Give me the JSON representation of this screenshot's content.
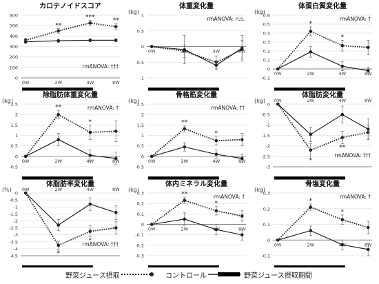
{
  "colors": {
    "line": "#222222",
    "grid": "#e3e3e3",
    "axis": "#888888",
    "text": "#333333",
    "bar": "#000000"
  },
  "legend": {
    "treated_label": "野菜ジュース摂取",
    "control_label": "コントロール",
    "period_label": "野菜ジュース摂取期間"
  },
  "chart_data": [
    {
      "type": "line",
      "title": "カロテノイドスコア",
      "unit": "",
      "x": [
        "0W",
        "2W",
        "4W",
        "8W"
      ],
      "ylim": [
        0,
        600
      ],
      "yticks": [
        0,
        100,
        200,
        300,
        400,
        500,
        600
      ],
      "xlabel_mode": "bottom",
      "series": [
        {
          "name": "野菜ジュース摂取",
          "style": "dotted",
          "values": [
            360,
            450,
            525,
            490
          ],
          "err": [
            20,
            22,
            25,
            30
          ]
        },
        {
          "name": "コントロール",
          "style": "solid",
          "values": [
            345,
            355,
            360,
            360
          ],
          "err": [
            15,
            15,
            15,
            15
          ]
        }
      ],
      "stars": [
        {
          "i": 1,
          "text": "**"
        },
        {
          "i": 2,
          "text": "***"
        },
        {
          "i": 3,
          "text": "**"
        }
      ],
      "stats_text": "rmANOVA: †††",
      "stats_pos": "lower-right",
      "period": [
        0,
        2
      ]
    },
    {
      "type": "line",
      "title": "体重変化量",
      "unit": "(kg)",
      "x": [
        "0W",
        "2W",
        "4W",
        "8W"
      ],
      "ylim": [
        -1,
        1
      ],
      "yticks": [
        -1,
        -0.5,
        0,
        0.5,
        1
      ],
      "xlabel_mode": "zero",
      "series": [
        {
          "name": "野菜ジュース摂取",
          "style": "dotted",
          "values": [
            0,
            -0.15,
            -0.5,
            -0.1
          ],
          "err": [
            0,
            0.2,
            0.2,
            0.3
          ]
        },
        {
          "name": "コントロール",
          "style": "solid",
          "values": [
            0,
            -0.1,
            -0.6,
            -0.05
          ],
          "err": [
            0,
            0.45,
            0.15,
            0.4
          ]
        }
      ],
      "stars": [],
      "stats_text": "rmANOVA: n.s.",
      "stats_pos": "upper-right",
      "period": [
        0,
        2
      ]
    },
    {
      "type": "line",
      "title": "体蛋白質変化量",
      "unit": "(kg)",
      "x": [
        "0W",
        "2W",
        "4W",
        "8W"
      ],
      "ylim": [
        -0.1,
        0.6
      ],
      "yticks": [
        -0.1,
        0,
        0.1,
        0.2,
        0.3,
        0.4,
        0.5,
        0.6
      ],
      "xlabel_mode": "zero",
      "series": [
        {
          "name": "野菜ジュース摂取",
          "style": "dotted",
          "values": [
            0,
            0.42,
            0.26,
            0.24
          ],
          "err": [
            0,
            0.05,
            0.06,
            0.08
          ]
        },
        {
          "name": "コントロール",
          "style": "solid",
          "values": [
            0,
            0.19,
            0.03,
            -0.02
          ],
          "err": [
            0,
            0.06,
            0.05,
            0.04
          ]
        }
      ],
      "stars": [
        {
          "i": 1,
          "text": "*"
        },
        {
          "i": 2,
          "text": "*"
        }
      ],
      "stats_text": "rmANOVA: †",
      "stats_pos": "upper-right",
      "period": [
        0,
        2
      ]
    },
    {
      "type": "line",
      "title": "除脂肪体重変化量",
      "unit": "(kg)",
      "x": [
        "0W",
        "2W",
        "4W",
        "8W"
      ],
      "ylim": [
        -0.5,
        2.5
      ],
      "yticks": [
        -0.5,
        0,
        0.5,
        1,
        1.5,
        2,
        2.5
      ],
      "xlabel_mode": "zero",
      "series": [
        {
          "name": "野菜ジュース摂取",
          "style": "dotted",
          "values": [
            0,
            2.0,
            1.15,
            1.2
          ],
          "err": [
            0,
            0.2,
            0.35,
            0.5
          ]
        },
        {
          "name": "コントロール",
          "style": "solid",
          "values": [
            0,
            0.8,
            0.05,
            -0.1
          ],
          "err": [
            0,
            0.3,
            0.25,
            0.3
          ]
        }
      ],
      "stars": [
        {
          "i": 1,
          "text": "**"
        },
        {
          "i": 2,
          "text": "*"
        }
      ],
      "stats_text": "rmANOVA: †",
      "stats_pos": "upper-right",
      "period": [
        0,
        2
      ]
    },
    {
      "type": "line",
      "title": "骨格筋変化量",
      "unit": "(kg)",
      "x": [
        "0W",
        "2W",
        "4W",
        "8W"
      ],
      "ylim": [
        -0.5,
        2.5
      ],
      "yticks": [
        -0.5,
        0,
        0.5,
        1,
        1.5,
        2,
        2.5
      ],
      "xlabel_mode": "zero",
      "series": [
        {
          "name": "野菜ジュース摂取",
          "style": "dotted",
          "values": [
            0,
            1.32,
            0.75,
            0.8
          ],
          "err": [
            0,
            0.15,
            0.2,
            0.3
          ]
        },
        {
          "name": "コントロール",
          "style": "solid",
          "values": [
            0,
            0.45,
            0.1,
            -0.1
          ],
          "err": [
            0,
            0.2,
            0.2,
            0.2
          ]
        }
      ],
      "stars": [
        {
          "i": 1,
          "text": "**"
        },
        {
          "i": 2,
          "text": "*"
        }
      ],
      "stats_text": "rmANOVA: ††",
      "stats_pos": "upper-right",
      "period": [
        0,
        2
      ]
    },
    {
      "type": "line",
      "title": "体脂肪変化量",
      "unit": "(kg)",
      "x": [
        "0W",
        "2W",
        "4W",
        "8W"
      ],
      "ylim": [
        -3,
        0
      ],
      "yticks": [
        -3,
        -2.5,
        -2,
        -1.5,
        -1,
        -0.5,
        0
      ],
      "xlabel_mode": "zero",
      "series": [
        {
          "name": "野菜ジュース摂取",
          "style": "dotted",
          "values": [
            0,
            -2.2,
            -1.6,
            -1.35
          ],
          "err": [
            0,
            0.3,
            0.3,
            0.35
          ]
        },
        {
          "name": "コントロール",
          "style": "solid",
          "values": [
            0,
            -1.45,
            -0.5,
            -1.2
          ],
          "err": [
            0,
            0.35,
            0.4,
            0.5
          ]
        }
      ],
      "stars": [
        {
          "i": 1,
          "text": "*"
        },
        {
          "i": 2,
          "text": "**"
        }
      ],
      "stats_text": "rmANOVA: †††",
      "stats_pos": "lower-right",
      "period": [
        0,
        2
      ]
    },
    {
      "type": "line",
      "title": "体脂肪率変化量",
      "unit": "(%)",
      "x": [
        "0W",
        "2W",
        "4W",
        "8W"
      ],
      "ylim": [
        -4.5,
        0
      ],
      "yticks": [
        -4.5,
        -4,
        -3.5,
        -3,
        -2.5,
        -2,
        -1.5,
        -1,
        -0.5,
        0
      ],
      "xlabel_mode": "zero",
      "series": [
        {
          "name": "野菜ジュース摂取",
          "style": "dotted",
          "values": [
            0,
            -3.75,
            -2.75,
            -2.5
          ],
          "err": [
            0,
            0.3,
            0.4,
            0.45
          ]
        },
        {
          "name": "コントロール",
          "style": "solid",
          "values": [
            0,
            -2.3,
            -0.8,
            -1.4
          ],
          "err": [
            0,
            0.4,
            0.45,
            0.5
          ]
        }
      ],
      "stars": [
        {
          "i": 1,
          "text": "*"
        },
        {
          "i": 2,
          "text": "*"
        }
      ],
      "stats_text": "rmANOVA: †††",
      "stats_pos": "lower-right",
      "period": [
        0,
        2
      ]
    },
    {
      "type": "line",
      "title": "体内ミネラル変化量",
      "unit": "(kg)",
      "x": [
        "0W",
        "2W",
        "4W",
        "8W"
      ],
      "ylim": [
        -0.3,
        0.3
      ],
      "yticks": [
        -0.3,
        -0.2,
        -0.1,
        0,
        0.1,
        0.2,
        0.3
      ],
      "xlabel_mode": "zero",
      "series": [
        {
          "name": "野菜ジュース摂取",
          "style": "dotted",
          "values": [
            0,
            0.23,
            0.13,
            0.08
          ],
          "err": [
            0,
            0.03,
            0.04,
            0.05
          ]
        },
        {
          "name": "コントロール",
          "style": "solid",
          "values": [
            0,
            0.05,
            -0.05,
            -0.1
          ],
          "err": [
            0,
            0.06,
            0.05,
            0.05
          ]
        }
      ],
      "stars": [
        {
          "i": 1,
          "text": "**"
        },
        {
          "i": 2,
          "text": "*"
        }
      ],
      "stats_text": "rmANOVA: †",
      "stats_pos": "upper-right",
      "period": [
        0,
        2
      ]
    },
    {
      "type": "line",
      "title": "骨塩変化量",
      "unit": "(kg)",
      "x": [
        "0W",
        "2W",
        "4W",
        "8W"
      ],
      "ylim": [
        -0.1,
        0.3
      ],
      "yticks": [
        -0.1,
        0,
        0.1,
        0.2,
        0.3
      ],
      "xlabel_mode": "zero",
      "series": [
        {
          "name": "野菜ジュース摂取",
          "style": "dotted",
          "values": [
            0,
            0.21,
            0.13,
            0.08
          ],
          "err": [
            0,
            0.02,
            0.03,
            0.04
          ]
        },
        {
          "name": "コントロール",
          "style": "solid",
          "values": [
            0,
            0.06,
            -0.03,
            -0.06
          ],
          "err": [
            0,
            0.03,
            0.03,
            0.04
          ]
        }
      ],
      "stars": [
        {
          "i": 1,
          "text": "*"
        },
        {
          "i": 2,
          "text": "*"
        }
      ],
      "stats_text": "rmANOVA: †",
      "stats_pos": "upper-right",
      "period": [
        0,
        2
      ]
    }
  ]
}
